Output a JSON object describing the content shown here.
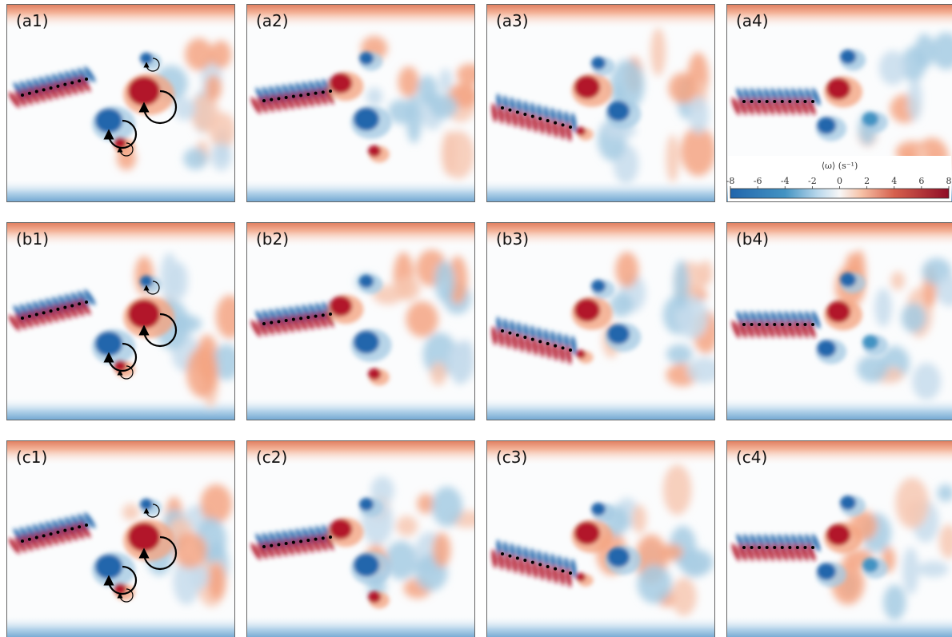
{
  "panels": [
    {
      "label": "(a1)"
    },
    {
      "label": "(a2)"
    },
    {
      "label": "(a3)"
    },
    {
      "label": "(a4)"
    },
    {
      "label": "(b1)"
    },
    {
      "label": "(b2)"
    },
    {
      "label": "(b3)"
    },
    {
      "label": "(b4)"
    },
    {
      "label": "(c1)"
    },
    {
      "label": "(c2)"
    },
    {
      "label": "(c3)"
    },
    {
      "label": "(c4)"
    }
  ],
  "colorbar": {
    "label": "⟨ω⟩ (s⁻¹)",
    "lim": [
      -8,
      8
    ],
    "ticks": [
      -8,
      -6,
      -4,
      -2,
      0,
      2,
      4,
      6,
      8
    ]
  }
}
